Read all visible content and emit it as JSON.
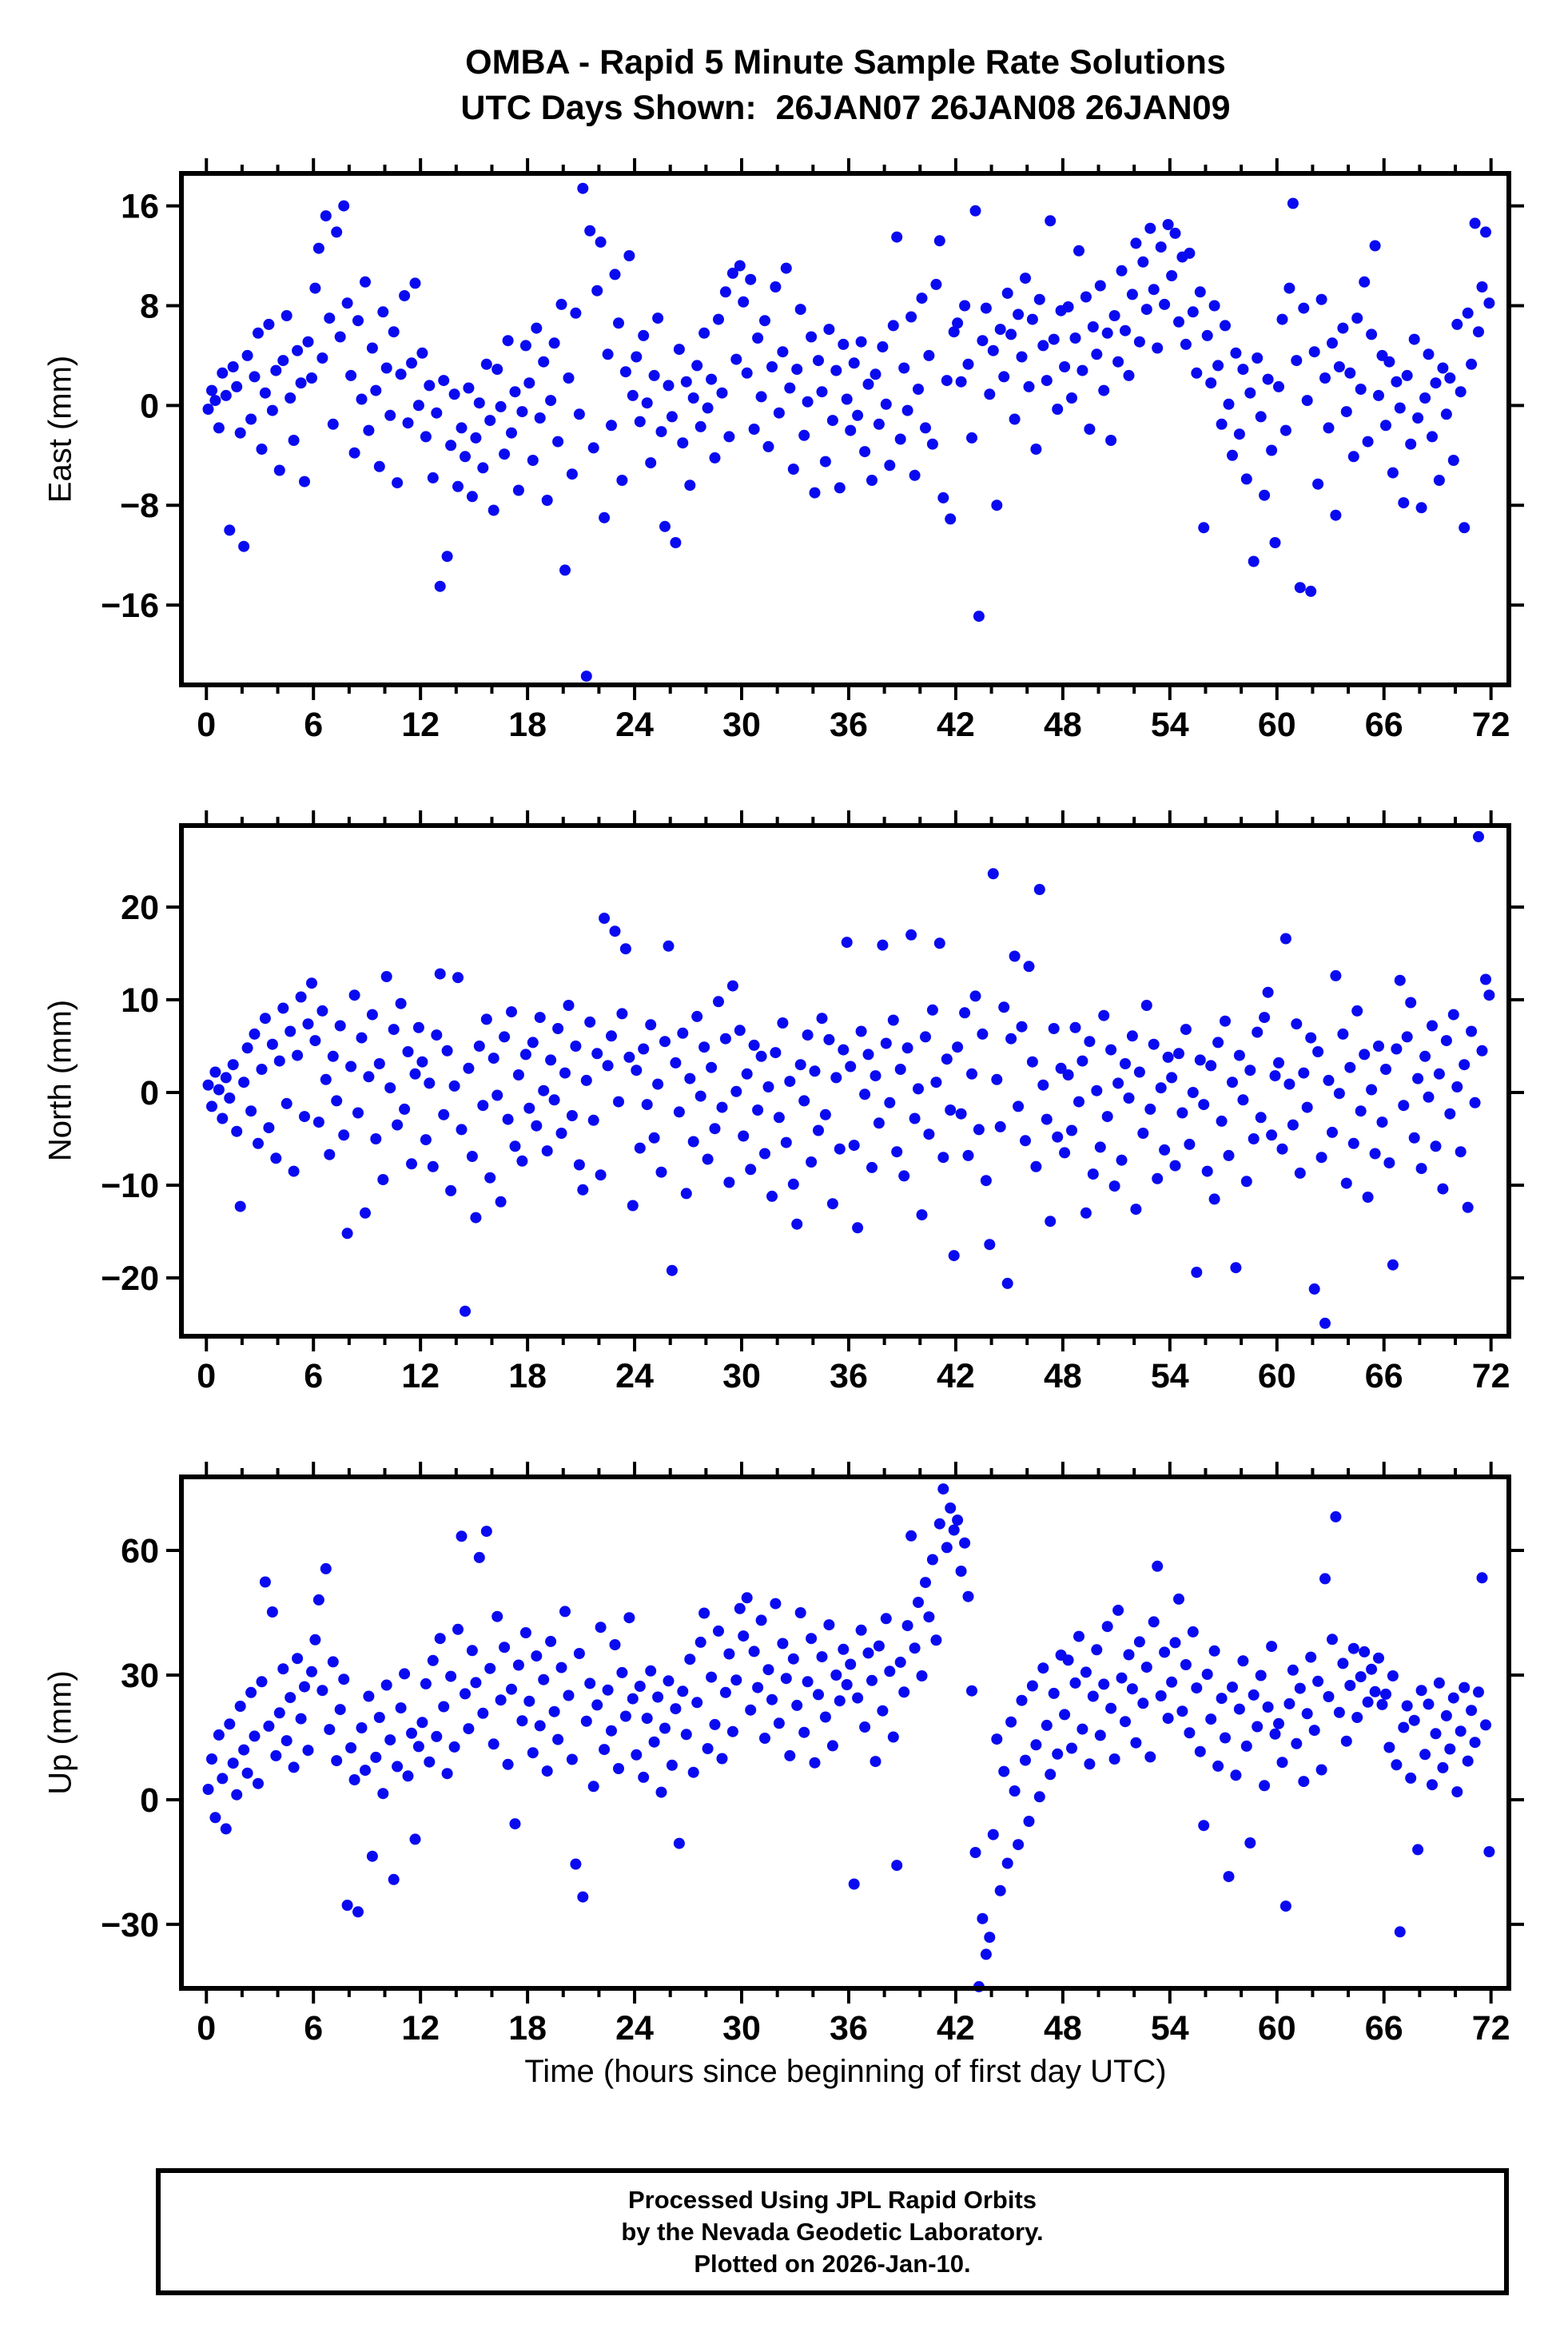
{
  "header": {
    "title": "OMBA - Rapid 5 Minute Sample Rate Solutions",
    "subtitle": "UTC Days Shown:  26JAN07 26JAN08 26JAN09"
  },
  "footer": {
    "line1": "Processed Using JPL Rapid Orbits",
    "line2": "by the Nevada Geodetic Laboratory.",
    "line3": "Plotted on 2026-Jan-10."
  },
  "chart_data": [
    {
      "type": "scatter",
      "panel": "east",
      "ylabel": "East (mm)",
      "xlabel": "",
      "ylim": [
        -22.4,
        18.6
      ],
      "yticks": [
        -16,
        -8,
        0,
        8,
        16
      ],
      "xlim": [
        -1.4,
        73.0
      ],
      "xticks": [
        0,
        6,
        12,
        18,
        24,
        30,
        36,
        42,
        48,
        54,
        60,
        66,
        72
      ],
      "xtick_minor_step": 2,
      "marker": {
        "color": "#0a0af0",
        "radius": 7
      },
      "x_start": 0.1,
      "x_step": 0.2,
      "values": [
        -0.3,
        1.2,
        0.4,
        -1.8,
        2.6,
        0.8,
        -10.0,
        3.1,
        1.5,
        -2.2,
        -11.3,
        4.0,
        -1.1,
        2.3,
        5.8,
        -3.5,
        1.0,
        6.5,
        -0.4,
        2.8,
        -5.2,
        3.6,
        7.2,
        0.6,
        -2.8,
        4.4,
        1.8,
        -6.1,
        5.1,
        2.2,
        9.4,
        12.6,
        3.8,
        15.2,
        7.0,
        -1.5,
        13.9,
        5.5,
        16.0,
        8.2,
        2.4,
        -3.8,
        6.8,
        0.5,
        9.9,
        -2.0,
        4.6,
        1.2,
        -4.9,
        7.5,
        3.0,
        -0.8,
        5.9,
        -6.2,
        2.5,
        8.8,
        -1.4,
        3.4,
        9.8,
        0.0,
        4.2,
        -2.5,
        1.6,
        -5.8,
        -0.6,
        -14.5,
        2.0,
        -12.1,
        -3.2,
        0.9,
        -6.5,
        -1.8,
        -4.1,
        1.4,
        -7.3,
        -2.6,
        0.2,
        -5.0,
        3.3,
        -1.2,
        -8.4,
        2.9,
        -0.1,
        -3.9,
        5.2,
        -2.2,
        1.1,
        -6.8,
        -0.5,
        4.8,
        1.8,
        -4.4,
        6.2,
        -1.0,
        3.5,
        -7.6,
        0.4,
        5.0,
        -2.9,
        8.1,
        -13.2,
        2.2,
        -5.5,
        7.4,
        -0.7,
        17.4,
        -21.7,
        14.0,
        -3.4,
        9.2,
        13.1,
        -9.0,
        4.1,
        -1.6,
        10.5,
        6.6,
        -6.0,
        2.7,
        12.0,
        0.8,
        3.9,
        -1.3,
        5.6,
        0.2,
        -4.6,
        2.4,
        7.0,
        -2.1,
        -9.7,
        1.6,
        -0.9,
        -11.0,
        4.5,
        -3.0,
        1.9,
        -6.4,
        0.6,
        3.2,
        -1.7,
        5.8,
        -0.2,
        2.1,
        -4.2,
        6.9,
        1.0,
        9.1,
        -2.5,
        10.6,
        3.7,
        11.2,
        8.3,
        2.6,
        10.1,
        -1.9,
        5.4,
        0.7,
        6.8,
        -3.3,
        3.1,
        9.5,
        -0.6,
        4.3,
        11.0,
        1.4,
        -5.1,
        2.9,
        7.7,
        -2.4,
        0.3,
        5.5,
        -7.0,
        3.6,
        1.1,
        -4.5,
        6.1,
        -1.2,
        2.8,
        -6.6,
        4.9,
        0.5,
        -2.0,
        3.4,
        -0.8,
        5.1,
        -3.7,
        1.7,
        -6.0,
        2.5,
        -1.5,
        4.7,
        0.1,
        -4.8,
        6.4,
        13.5,
        -2.7,
        3.0,
        -0.4,
        7.1,
        -5.6,
        1.3,
        8.6,
        -1.8,
        4.0,
        -3.1,
        9.7,
        13.2,
        -7.4,
        2.0,
        -9.1,
        5.9,
        6.6,
        1.9,
        8.0,
        3.3,
        -2.6,
        15.6,
        -16.9,
        5.2,
        7.8,
        0.9,
        4.4,
        -8.0,
        6.1,
        2.3,
        9.0,
        5.7,
        -1.1,
        7.3,
        3.9,
        10.2,
        1.5,
        6.9,
        -3.5,
        8.5,
        4.8,
        2.0,
        14.8,
        5.3,
        -0.3,
        7.6,
        3.1,
        7.9,
        0.6,
        5.4,
        12.4,
        2.8,
        8.7,
        -1.9,
        6.3,
        4.1,
        9.6,
        1.2,
        5.8,
        -2.8,
        7.2,
        3.5,
        10.8,
        6.0,
        2.4,
        8.9,
        13.0,
        5.1,
        11.5,
        7.7,
        14.2,
        9.3,
        4.6,
        12.7,
        8.1,
        14.5,
        10.4,
        13.8,
        6.7,
        11.9,
        4.9,
        12.2,
        7.5,
        2.6,
        9.1,
        -9.8,
        5.6,
        1.8,
        8.0,
        3.2,
        -1.5,
        6.4,
        0.1,
        -4.0,
        4.2,
        -2.3,
        2.9,
        -5.9,
        1.0,
        -12.5,
        3.8,
        -0.9,
        -7.2,
        2.1,
        -3.6,
        -11.0,
        1.5,
        6.9,
        -2.0,
        9.4,
        16.2,
        3.6,
        -14.6,
        7.8,
        0.4,
        -14.9,
        4.3,
        -6.3,
        8.5,
        2.2,
        -1.8,
        5.0,
        -8.8,
        3.1,
        6.2,
        -0.5,
        2.6,
        -4.1,
        7.0,
        1.3,
        9.9,
        -2.9,
        5.7,
        12.8,
        0.8,
        4.0,
        -1.6,
        3.5,
        -5.4,
        1.9,
        -0.2,
        -7.8,
        2.4,
        -3.1,
        5.3,
        -1.0,
        -8.2,
        0.6,
        4.1,
        -2.5,
        1.8,
        -6.0,
        3.0,
        -0.7,
        2.2,
        -4.4,
        6.5,
        1.1,
        -9.8,
        7.4,
        3.3,
        14.6,
        5.9,
        9.5,
        13.9,
        8.2
      ]
    },
    {
      "type": "scatter",
      "panel": "north",
      "ylabel": "North (mm)",
      "xlabel": "",
      "ylim": [
        -26.3,
        28.8
      ],
      "yticks": [
        -20,
        -10,
        0,
        10,
        20
      ],
      "xlim": [
        -1.4,
        73.0
      ],
      "xticks": [
        0,
        6,
        12,
        18,
        24,
        30,
        36,
        42,
        48,
        54,
        60,
        66,
        72
      ],
      "xtick_minor_step": 2,
      "marker": {
        "color": "#0a0af0",
        "radius": 7
      },
      "x_start": 0.1,
      "x_step": 0.2,
      "values": [
        0.8,
        -1.5,
        2.2,
        0.3,
        -2.8,
        1.6,
        -0.6,
        3.0,
        -4.2,
        -12.3,
        1.1,
        4.8,
        -2.0,
        6.3,
        -5.5,
        2.5,
        8.0,
        -3.8,
        5.2,
        -7.1,
        3.4,
        9.1,
        -1.2,
        6.6,
        -8.5,
        4.0,
        10.3,
        -2.6,
        7.4,
        11.8,
        5.6,
        -3.2,
        8.8,
        1.4,
        -6.7,
        3.9,
        -0.9,
        7.2,
        -4.6,
        -15.2,
        2.8,
        10.5,
        -2.2,
        5.9,
        -13.0,
        1.7,
        8.4,
        -5.0,
        3.1,
        -9.4,
        12.5,
        0.5,
        6.8,
        -3.5,
        9.6,
        -1.8,
        4.4,
        -7.7,
        2.0,
        7.0,
        3.3,
        -5.1,
        1.0,
        -8.0,
        6.2,
        12.8,
        -2.4,
        4.5,
        -10.6,
        0.7,
        12.4,
        -4.0,
        -23.6,
        2.6,
        -6.9,
        -13.5,
        5.0,
        -1.4,
        7.9,
        -9.2,
        3.7,
        -0.3,
        -11.8,
        6.0,
        -2.9,
        8.7,
        -5.8,
        1.9,
        -7.4,
        4.1,
        -1.7,
        5.4,
        -3.6,
        8.1,
        0.2,
        -6.3,
        3.5,
        -0.8,
        6.9,
        -4.4,
        2.1,
        9.4,
        -2.5,
        5.0,
        -7.8,
        -10.5,
        1.3,
        7.6,
        -3.0,
        4.2,
        -8.9,
        18.8,
        2.9,
        6.1,
        17.4,
        -1.0,
        8.5,
        15.5,
        3.8,
        -12.2,
        2.4,
        -6.0,
        4.7,
        -1.3,
        7.3,
        -4.9,
        0.9,
        -8.6,
        5.5,
        15.8,
        -19.2,
        3.2,
        -2.1,
        6.4,
        -10.9,
        1.5,
        -5.3,
        8.2,
        -0.4,
        4.9,
        -7.2,
        2.7,
        -3.9,
        9.8,
        -1.6,
        5.8,
        -9.7,
        11.5,
        0.1,
        6.7,
        -4.7,
        2.0,
        -8.3,
        5.1,
        -1.9,
        3.9,
        -6.6,
        0.6,
        -11.2,
        4.3,
        -2.7,
        7.5,
        -5.4,
        1.2,
        -9.9,
        -14.2,
        3.0,
        -0.9,
        6.2,
        -7.5,
        2.3,
        -4.1,
        8.0,
        -2.4,
        5.7,
        -12.0,
        1.6,
        -6.1,
        4.6,
        16.2,
        2.8,
        -5.7,
        -14.6,
        6.6,
        -0.2,
        4.1,
        -8.1,
        1.8,
        -3.3,
        15.9,
        5.3,
        -1.1,
        7.8,
        -6.4,
        2.5,
        -9.0,
        4.8,
        17.0,
        -2.8,
        0.4,
        -13.2,
        6.0,
        -4.5,
        8.9,
        1.1,
        16.1,
        -7.0,
        3.6,
        -1.9,
        -17.6,
        4.9,
        -2.3,
        8.6,
        -6.8,
        2.0,
        10.4,
        -4.0,
        6.3,
        -9.5,
        -16.4,
        23.6,
        1.4,
        -3.7,
        9.2,
        -20.6,
        5.8,
        14.7,
        -1.5,
        7.1,
        -5.2,
        13.6,
        3.3,
        -8.0,
        21.9,
        0.8,
        -2.9,
        -13.9,
        6.9,
        -4.8,
        2.6,
        -6.5,
        1.9,
        -4.1,
        7.0,
        -1.0,
        3.4,
        -13.0,
        5.5,
        -8.8,
        0.2,
        -5.9,
        8.3,
        -2.6,
        4.6,
        -10.1,
        1.0,
        -7.3,
        3.1,
        -0.6,
        6.1,
        -12.6,
        2.2,
        -4.4,
        9.4,
        -1.8,
        5.2,
        -9.3,
        0.5,
        -6.2,
        3.8,
        1.6,
        -7.9,
        4.2,
        -2.2,
        6.8,
        -5.6,
        0.0,
        -19.4,
        3.5,
        -1.3,
        -8.5,
        2.9,
        -11.5,
        5.4,
        -3.1,
        7.7,
        -6.8,
        1.1,
        -18.9,
        4.0,
        -0.8,
        -9.6,
        2.4,
        -5.0,
        6.5,
        -2.7,
        8.1,
        10.8,
        -4.6,
        1.8,
        3.2,
        -6.1,
        16.6,
        0.9,
        -3.5,
        7.4,
        -8.7,
        2.1,
        -1.6,
        5.9,
        -21.2,
        4.4,
        -7.0,
        -24.9,
        1.3,
        -4.3,
        12.6,
        -0.1,
        6.3,
        -9.8,
        2.7,
        -5.5,
        8.8,
        -2.0,
        4.1,
        -11.3,
        0.3,
        -6.6,
        5.0,
        -3.2,
        2.5,
        -7.6,
        -18.6,
        4.7,
        12.1,
        -1.4,
        6.0,
        9.7,
        -4.9,
        1.5,
        -8.2,
        3.9,
        -0.5,
        7.2,
        -5.8,
        2.0,
        -10.4,
        5.6,
        -2.3,
        8.4,
        0.6,
        -6.4,
        3.0,
        -12.4,
        6.6,
        -1.1,
        27.6,
        4.5,
        12.2,
        10.5
      ]
    },
    {
      "type": "scatter",
      "panel": "up",
      "ylabel": "Up (mm)",
      "xlabel": "Time (hours since beginning of first day UTC)",
      "ylim": [
        -45.4,
        77.7
      ],
      "yticks": [
        -30,
        0,
        30,
        60
      ],
      "xlim": [
        -1.4,
        73.0
      ],
      "xticks": [
        0,
        6,
        12,
        18,
        24,
        30,
        36,
        42,
        48,
        54,
        60,
        66,
        72
      ],
      "xtick_minor_step": 2,
      "marker": {
        "color": "#0a0af0",
        "radius": 7
      },
      "x_start": 0.1,
      "x_step": 0.2,
      "values": [
        2.5,
        9.8,
        -4.3,
        15.6,
        5.1,
        -7.0,
        18.2,
        8.8,
        1.2,
        22.5,
        12.0,
        6.4,
        25.8,
        15.3,
        3.9,
        28.4,
        52.4,
        17.7,
        45.2,
        10.6,
        20.9,
        31.5,
        14.2,
        24.6,
        7.8,
        34.0,
        19.5,
        27.2,
        11.9,
        30.8,
        38.5,
        48.1,
        26.3,
        55.6,
        16.9,
        33.2,
        9.4,
        21.7,
        29.0,
        -25.4,
        12.5,
        4.8,
        -27.0,
        17.3,
        7.1,
        24.9,
        -13.6,
        10.2,
        19.8,
        1.5,
        27.6,
        14.4,
        -19.2,
        8.0,
        22.1,
        30.3,
        5.7,
        16.0,
        -9.5,
        12.8,
        18.6,
        27.9,
        9.1,
        33.5,
        15.2,
        38.8,
        22.4,
        6.3,
        29.7,
        12.7,
        41.0,
        63.4,
        25.5,
        17.1,
        35.9,
        28.2,
        58.3,
        20.8,
        64.6,
        31.6,
        13.4,
        44.1,
        24.0,
        36.7,
        8.5,
        26.6,
        -5.8,
        32.4,
        19.0,
        40.2,
        23.7,
        11.3,
        34.6,
        17.8,
        28.9,
        6.9,
        38.1,
        21.2,
        14.5,
        31.8,
        45.3,
        25.1,
        9.7,
        -15.5,
        35.2,
        -23.4,
        18.9,
        28.0,
        3.2,
        22.8,
        41.5,
        12.1,
        26.4,
        16.6,
        37.3,
        7.5,
        30.6,
        20.1,
        43.8,
        24.3,
        10.8,
        27.3,
        5.4,
        19.6,
        31.0,
        13.9,
        24.7,
        1.8,
        17.2,
        28.6,
        8.3,
        21.9,
        -10.5,
        26.1,
        15.7,
        33.8,
        6.6,
        23.4,
        37.9,
        44.9,
        12.3,
        29.5,
        18.1,
        40.6,
        9.9,
        25.8,
        35.1,
        16.4,
        28.8,
        46.0,
        39.4,
        48.6,
        21.6,
        35.7,
        27.0,
        43.2,
        14.8,
        31.3,
        24.1,
        47.2,
        18.4,
        37.6,
        29.2,
        10.6,
        33.9,
        22.7,
        45.0,
        16.2,
        28.4,
        38.8,
        8.9,
        25.3,
        34.4,
        19.9,
        42.1,
        13.0,
        30.0,
        23.8,
        36.2,
        27.7,
        32.6,
        -20.3,
        24.5,
        40.8,
        17.5,
        35.3,
        28.7,
        9.2,
        37.0,
        21.4,
        43.6,
        30.9,
        15.1,
        -15.8,
        33.1,
        25.9,
        41.9,
        63.5,
        36.5,
        47.5,
        29.8,
        52.3,
        44.0,
        57.8,
        38.4,
        66.4,
        74.8,
        60.7,
        70.2,
        64.9,
        67.3,
        55.0,
        61.8,
        48.9,
        26.2,
        -12.7,
        -45.0,
        -28.6,
        -37.2,
        -33.1,
        -8.4,
        14.6,
        -21.9,
        6.8,
        -15.3,
        18.7,
        2.1,
        -10.8,
        23.9,
        9.5,
        -5.2,
        27.4,
        13.2,
        0.7,
        31.7,
        17.9,
        6.1,
        25.6,
        11.0,
        34.8,
        20.5,
        33.6,
        12.4,
        28.1,
        39.3,
        17.0,
        30.7,
        8.6,
        24.9,
        36.1,
        15.5,
        27.8,
        41.7,
        22.0,
        9.8,
        45.6,
        29.3,
        18.8,
        34.9,
        26.7,
        13.7,
        38.0,
        23.2,
        31.9,
        10.3,
        42.8,
        56.2,
        25.0,
        35.5,
        19.6,
        28.3,
        37.8,
        48.3,
        21.3,
        32.5,
        16.1,
        40.4,
        26.9,
        11.6,
        -6.2,
        30.2,
        19.4,
        35.8,
        8.1,
        24.4,
        14.9,
        -18.5,
        27.1,
        5.9,
        21.8,
        33.4,
        12.9,
        -10.4,
        25.2,
        17.6,
        29.9,
        3.4,
        22.3,
        36.9,
        15.8,
        18.3,
        9.0,
        -25.6,
        23.1,
        31.2,
        13.5,
        26.8,
        4.4,
        20.7,
        34.3,
        16.7,
        28.5,
        7.2,
        53.2,
        24.8,
        38.6,
        68.1,
        21.0,
        32.8,
        14.1,
        27.5,
        36.4,
        19.8,
        29.6,
        35.6,
        23.5,
        31.4,
        26.0,
        34.1,
        22.9,
        25.4,
        12.6,
        29.8,
        8.4,
        -31.8,
        17.4,
        22.6,
        5.2,
        19.1,
        -12.0,
        26.3,
        10.9,
        23.0,
        3.6,
        15.9,
        28.1,
        7.7,
        20.2,
        12.2,
        24.5,
        1.9,
        16.5,
        27.0,
        9.3,
        21.5,
        13.8,
        25.9,
        53.4,
        18.0,
        -12.5
      ]
    }
  ]
}
